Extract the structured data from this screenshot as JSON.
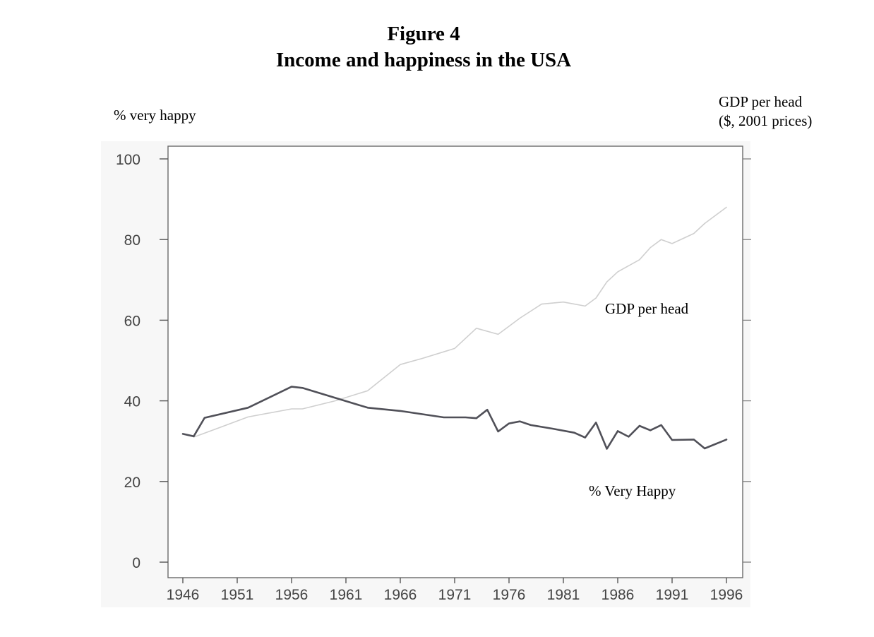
{
  "figure_label": "Figure 4",
  "chart_data": {
    "type": "line",
    "title": "Income and happiness in the USA",
    "ylabel_left": "% very happy",
    "ylabel_right_line1": "GDP per head",
    "ylabel_right_line2": "($, 2001 prices)",
    "xlim": [
      1946,
      1996
    ],
    "ylim": [
      0,
      100
    ],
    "x_ticks": [
      1946,
      1951,
      1956,
      1961,
      1966,
      1971,
      1976,
      1981,
      1986,
      1991,
      1996
    ],
    "y_ticks": [
      0,
      20,
      40,
      60,
      80,
      100
    ],
    "grid": false,
    "series": [
      {
        "name": "GDP per head",
        "color": "#cfcfcf",
        "x": [
          1947,
          1949,
          1952,
          1956,
          1957,
          1960,
          1963,
          1966,
          1968,
          1971,
          1973,
          1975,
          1976,
          1977,
          1979,
          1981,
          1983,
          1984,
          1985,
          1986,
          1988,
          1989,
          1990,
          1991,
          1993,
          1994,
          1996
        ],
        "y": [
          31,
          33,
          36,
          38,
          38,
          40,
          42.5,
          49,
          50.5,
          53,
          58,
          56.5,
          58.5,
          60.5,
          64,
          64.5,
          63.5,
          65.5,
          69.5,
          72,
          75,
          78,
          80,
          79,
          81.5,
          84,
          88
        ]
      },
      {
        "name": "% Very Happy",
        "color": "#505058",
        "x": [
          1946,
          1947,
          1948,
          1952,
          1956,
          1957,
          1963,
          1966,
          1970,
          1972,
          1973,
          1974,
          1975,
          1976,
          1977,
          1978,
          1980,
          1982,
          1983,
          1984,
          1985,
          1986,
          1987,
          1988,
          1989,
          1990,
          1991,
          1993,
          1994,
          1996
        ],
        "y": [
          31.8,
          31.2,
          35.8,
          38.3,
          43.5,
          43.2,
          38.3,
          37.5,
          35.9,
          35.9,
          35.7,
          37.8,
          32.4,
          34.4,
          34.9,
          34.0,
          33.1,
          32.1,
          30.9,
          34.6,
          28.1,
          32.5,
          31.1,
          33.8,
          32.7,
          34.0,
          30.3,
          30.4,
          28.2,
          30.4
        ]
      }
    ]
  }
}
